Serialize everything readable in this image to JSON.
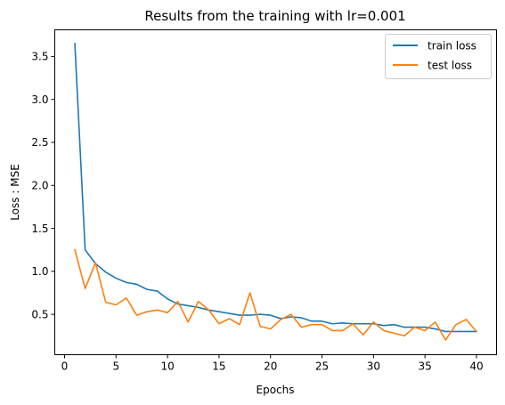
{
  "chart_data": {
    "type": "line",
    "title": "Results from the training with lr=0.001",
    "xlabel": "Epochs",
    "ylabel": "Loss : MSE",
    "xlim": [
      -0.95,
      41.95
    ],
    "ylim": [
      0.03,
      3.81
    ],
    "xticks": [
      0,
      5,
      10,
      15,
      20,
      25,
      30,
      35,
      40
    ],
    "xtick_labels": [
      "0",
      "5",
      "10",
      "15",
      "20",
      "25",
      "30",
      "35",
      "40"
    ],
    "yticks": [
      0.5,
      1.0,
      1.5,
      2.0,
      2.5,
      3.0,
      3.5
    ],
    "ytick_labels": [
      "0.5",
      "1.0",
      "1.5",
      "2.0",
      "2.5",
      "3.0",
      "3.5"
    ],
    "grid": false,
    "legend_position": "top-right",
    "x": [
      1,
      2,
      3,
      4,
      5,
      6,
      7,
      8,
      9,
      10,
      11,
      12,
      13,
      14,
      15,
      16,
      17,
      18,
      19,
      20,
      21,
      22,
      23,
      24,
      25,
      26,
      27,
      28,
      29,
      30,
      31,
      32,
      33,
      34,
      35,
      36,
      37,
      38,
      39,
      40
    ],
    "series": [
      {
        "name": "train loss",
        "color": "#1f77b4",
        "values": [
          3.65,
          1.25,
          1.09,
          0.99,
          0.92,
          0.87,
          0.85,
          0.79,
          0.77,
          0.68,
          0.62,
          0.6,
          0.58,
          0.55,
          0.53,
          0.51,
          0.49,
          0.49,
          0.5,
          0.49,
          0.45,
          0.47,
          0.46,
          0.42,
          0.42,
          0.39,
          0.4,
          0.39,
          0.39,
          0.39,
          0.37,
          0.38,
          0.35,
          0.35,
          0.35,
          0.33,
          0.3,
          0.3,
          0.3,
          0.3
        ]
      },
      {
        "name": "test loss",
        "color": "#ff7f0e",
        "values": [
          1.25,
          0.8,
          1.1,
          0.64,
          0.61,
          0.69,
          0.49,
          0.53,
          0.55,
          0.52,
          0.65,
          0.41,
          0.65,
          0.55,
          0.39,
          0.45,
          0.38,
          0.75,
          0.36,
          0.33,
          0.44,
          0.5,
          0.35,
          0.38,
          0.38,
          0.31,
          0.31,
          0.39,
          0.26,
          0.41,
          0.31,
          0.28,
          0.25,
          0.35,
          0.31,
          0.41,
          0.2,
          0.38,
          0.44,
          0.3
        ]
      }
    ]
  }
}
